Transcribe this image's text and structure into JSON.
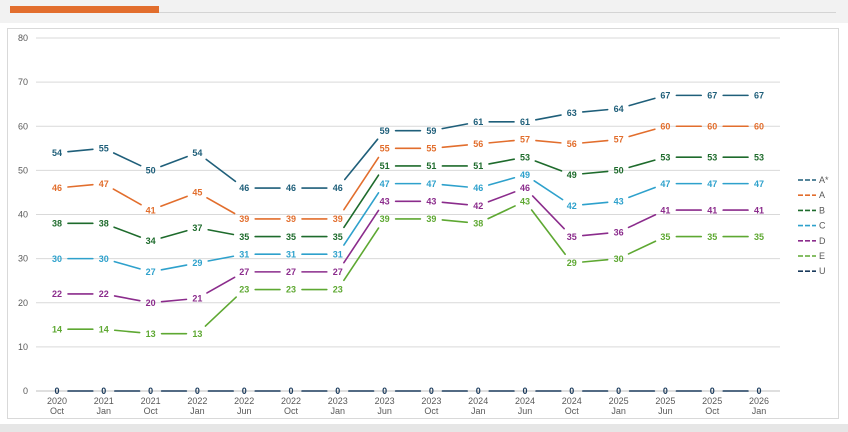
{
  "colors": {
    "accent": "#e26e2d",
    "grid": "#d9d9d9",
    "axis": "#bfbfbf"
  },
  "chart_data": {
    "type": "line",
    "ylim": [
      0,
      80
    ],
    "yticks": [
      0,
      10,
      20,
      30,
      40,
      50,
      60,
      70,
      80
    ],
    "grid": true,
    "legend_position": "right",
    "categories": [
      [
        "2020",
        "Oct"
      ],
      [
        "2021",
        "Jan"
      ],
      [
        "2021",
        "Oct"
      ],
      [
        "2022",
        "Jan"
      ],
      [
        "2022",
        "Jun"
      ],
      [
        "2022",
        "Oct"
      ],
      [
        "2023",
        "Jan"
      ],
      [
        "2023",
        "Jun"
      ],
      [
        "2023",
        "Oct"
      ],
      [
        "2024",
        "Jan"
      ],
      [
        "2024",
        "Jun"
      ],
      [
        "2024",
        "Oct"
      ],
      [
        "2025",
        "Jan"
      ],
      [
        "2025",
        "Jun"
      ],
      [
        "2025",
        "Oct"
      ],
      [
        "2026",
        "Jan"
      ]
    ],
    "series": [
      {
        "name": "A*",
        "color": "#1f5f7a",
        "values": [
          54,
          55,
          50,
          54,
          46,
          46,
          46,
          59,
          59,
          61,
          61,
          63,
          64,
          67,
          67,
          67
        ]
      },
      {
        "name": "A",
        "color": "#e26e2d",
        "values": [
          46,
          47,
          41,
          45,
          39,
          39,
          39,
          55,
          55,
          56,
          57,
          56,
          57,
          60,
          60,
          60
        ]
      },
      {
        "name": "B",
        "color": "#1e6b2c",
        "values": [
          38,
          38,
          34,
          37,
          35,
          35,
          35,
          51,
          51,
          51,
          53,
          49,
          50,
          53,
          53,
          53
        ]
      },
      {
        "name": "C",
        "color": "#2ea1cc",
        "values": [
          30,
          30,
          27,
          29,
          31,
          31,
          31,
          47,
          47,
          46,
          49,
          42,
          43,
          47,
          47,
          47
        ]
      },
      {
        "name": "D",
        "color": "#8b2c8c",
        "values": [
          22,
          22,
          20,
          21,
          27,
          27,
          27,
          43,
          43,
          42,
          46,
          35,
          36,
          41,
          41,
          41
        ]
      },
      {
        "name": "E",
        "color": "#5ea832",
        "values": [
          14,
          14,
          13,
          13,
          23,
          23,
          23,
          39,
          39,
          38,
          43,
          29,
          30,
          35,
          35,
          35
        ]
      },
      {
        "name": "U",
        "color": "#1a3a5c",
        "values": [
          0,
          0,
          0,
          0,
          0,
          0,
          0,
          0,
          0,
          0,
          0,
          0,
          0,
          0,
          0,
          0
        ]
      }
    ]
  }
}
